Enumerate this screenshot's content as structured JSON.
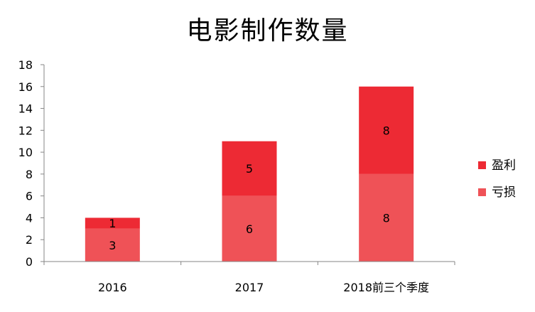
{
  "chart_data": {
    "type": "bar",
    "stacked": true,
    "title": "电影制作数量",
    "xlabel": "",
    "ylabel": "",
    "categories": [
      "2016",
      "2017",
      "2018前三个季度"
    ],
    "series": [
      {
        "name": "亏损",
        "values": [
          3,
          6,
          8
        ],
        "color": "#ef5257"
      },
      {
        "name": "盈利",
        "values": [
          1,
          5,
          8
        ],
        "color": "#ed2a34"
      }
    ],
    "ylim": [
      0,
      18
    ],
    "yticks": [
      0,
      2,
      4,
      6,
      8,
      10,
      12,
      14,
      16,
      18
    ],
    "legend_position": "right",
    "grid": false
  }
}
